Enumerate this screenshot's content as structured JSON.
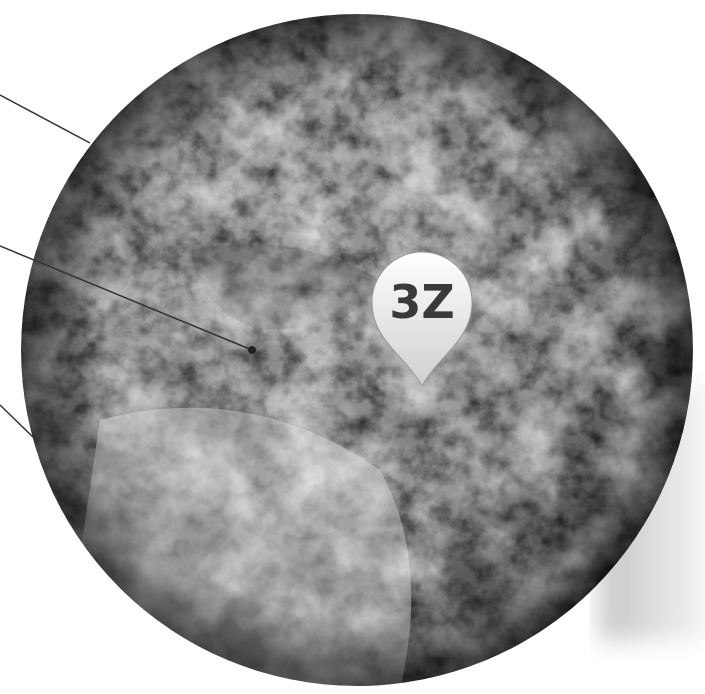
{
  "pin": {
    "label": "3Z"
  }
}
